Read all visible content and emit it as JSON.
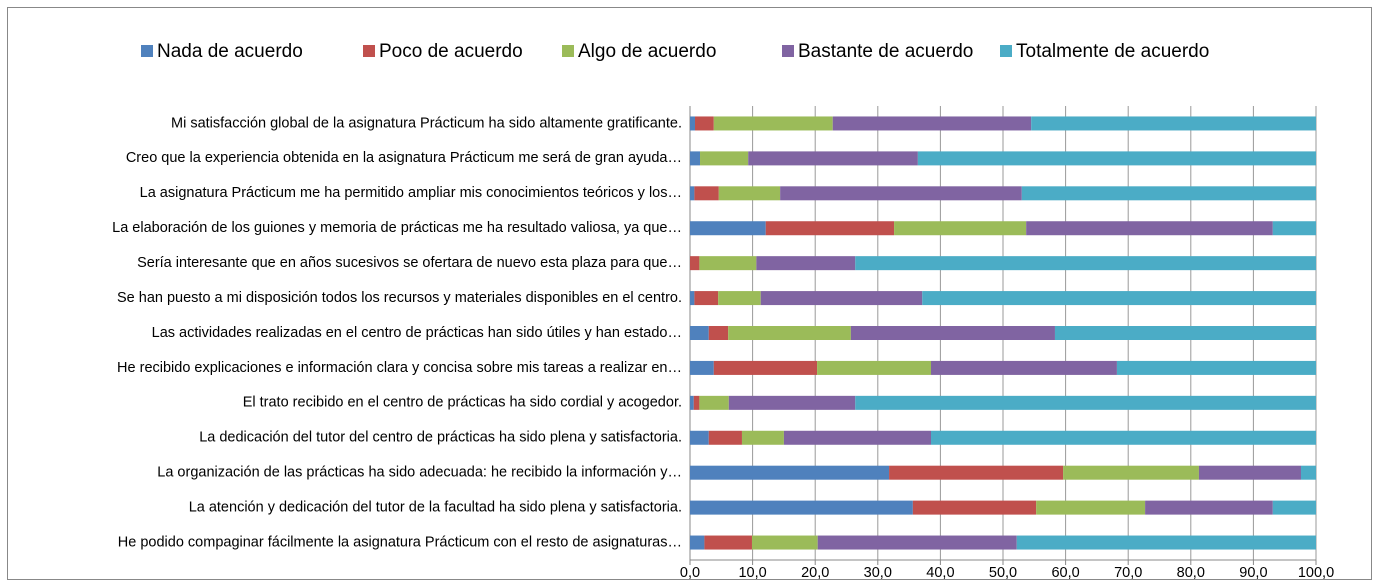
{
  "chart_data": {
    "type": "stacked-bar-horizontal",
    "categories": [
      "Mi satisfacción global de la asignatura Prácticum ha sido altamente gratificante.",
      "Creo que la experiencia obtenida en la asignatura Prácticum me será de gran ayuda…",
      "La asignatura Prácticum me ha permitido ampliar mis conocimientos teóricos y los…",
      "La elaboración de los guiones y memoria de prácticas me ha resultado valiosa, ya que…",
      "Sería interesante que en años sucesivos se ofertara de nuevo esta plaza para que…",
      "Se han puesto a mi disposición todos los recursos y materiales disponibles en el centro.",
      "Las actividades realizadas en el centro de prácticas han sido útiles y han estado…",
      "He recibido explicaciones e información clara y concisa sobre mis tareas a realizar en…",
      "El trato recibido en el centro de prácticas ha sido cordial y acogedor.",
      "La dedicación del tutor del centro de prácticas ha sido plena y satisfactoria.",
      "La organización de las prácticas ha sido adecuada: he recibido la información y…",
      "La atención y dedicación del tutor de la facultad ha sido plena y satisfactoria.",
      "He podido compaginar fácilmente la asignatura Prácticum con el resto de asignaturas…"
    ],
    "series": [
      {
        "name": "Nada de acuerdo",
        "color": "#4f81bd",
        "values": [
          0.8,
          1.6,
          0.7,
          12.1,
          0,
          0.7,
          3.0,
          3.8,
          0.6,
          3.0,
          31.8,
          35.6,
          2.3
        ]
      },
      {
        "name": "Poco de acuerdo",
        "color": "#c0504d",
        "values": [
          3.0,
          0,
          3.9,
          20.5,
          1.5,
          3.8,
          3.1,
          16.5,
          0.9,
          5.3,
          27.8,
          19.7,
          7.6
        ]
      },
      {
        "name": "Algo de acuerdo",
        "color": "#9bbb59",
        "values": [
          19.0,
          7.7,
          9.8,
          21.1,
          9.1,
          6.8,
          19.6,
          18.2,
          4.7,
          6.7,
          21.7,
          17.4,
          10.5
        ]
      },
      {
        "name": "Bastante de acuerdo",
        "color": "#8064a2",
        "values": [
          31.7,
          27.1,
          38.6,
          39.4,
          15.8,
          25.8,
          32.6,
          29.7,
          20.2,
          23.5,
          16.3,
          20.4,
          31.8
        ]
      },
      {
        "name": "Totalmente de acuerdo",
        "color": "#4bacc6",
        "values": [
          45.5,
          63.6,
          47.0,
          6.9,
          73.6,
          62.9,
          41.7,
          31.8,
          73.6,
          61.5,
          2.4,
          6.9,
          47.8
        ]
      }
    ],
    "xlim": [
      0,
      100
    ],
    "xticks": [
      {
        "value": 0,
        "label": "0,0"
      },
      {
        "value": 10,
        "label": "10,0"
      },
      {
        "value": 20,
        "label": "20,0"
      },
      {
        "value": 30,
        "label": "30,0"
      },
      {
        "value": 40,
        "label": "40,0"
      },
      {
        "value": 50,
        "label": "50,0"
      },
      {
        "value": 60,
        "label": "60,0"
      },
      {
        "value": 70,
        "label": "70,0"
      },
      {
        "value": 80,
        "label": "80,0"
      },
      {
        "value": 90,
        "label": "90,0"
      },
      {
        "value": 100,
        "label": "100,0"
      }
    ],
    "grid": true,
    "legend": "top"
  }
}
